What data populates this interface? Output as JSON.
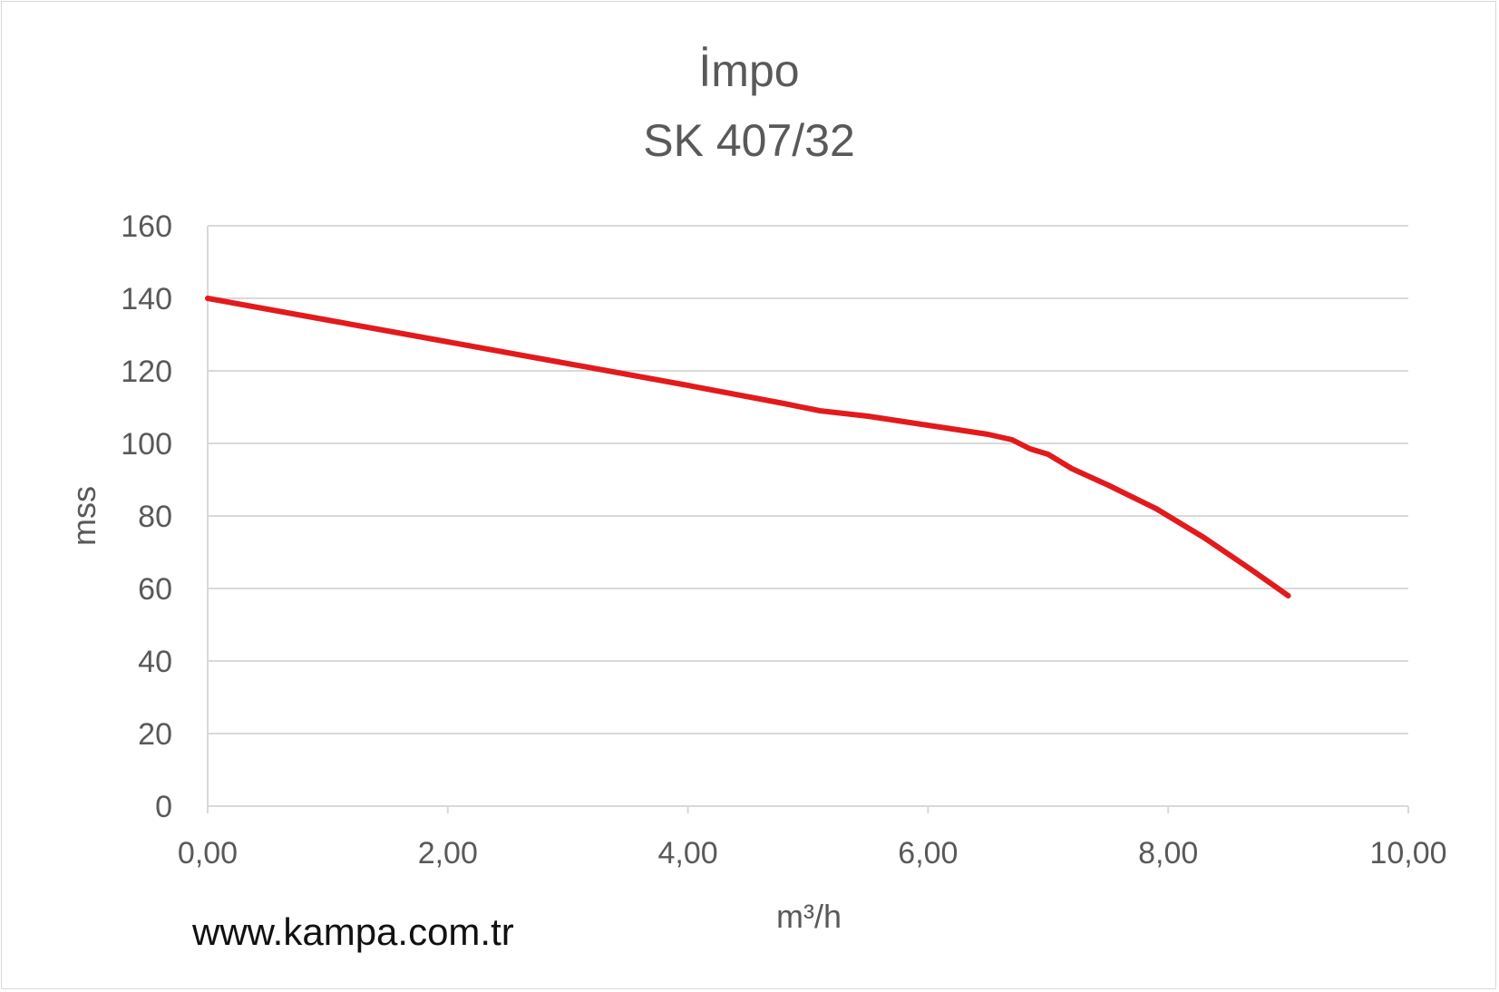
{
  "chart_data": {
    "type": "line",
    "title": "İmpo",
    "subtitle": "SK 407/32",
    "xlabel": "m³/h",
    "ylabel": "mss",
    "xlim": [
      0,
      10
    ],
    "ylim": [
      0,
      160
    ],
    "x_ticks": [
      "0,00",
      "2,00",
      "4,00",
      "6,00",
      "8,00",
      "10,00"
    ],
    "y_ticks": [
      "0",
      "20",
      "40",
      "60",
      "80",
      "100",
      "120",
      "140",
      "160"
    ],
    "grid": true,
    "legend": "none",
    "series": [
      {
        "color": "#e31a1c",
        "x": [
          0,
          1,
          2,
          3,
          4,
          4.8,
          5.1,
          5.5,
          6.0,
          6.5,
          6.7,
          6.85,
          7.0,
          7.2,
          7.5,
          7.9,
          8.3,
          8.7,
          9.0
        ],
        "y": [
          140,
          134,
          128,
          122,
          116,
          111,
          109,
          107.5,
          105,
          102.5,
          101,
          98.5,
          97,
          93,
          88.5,
          82,
          74,
          65,
          58
        ]
      }
    ]
  },
  "footer": {
    "website": "www.kampa.com.tr"
  }
}
